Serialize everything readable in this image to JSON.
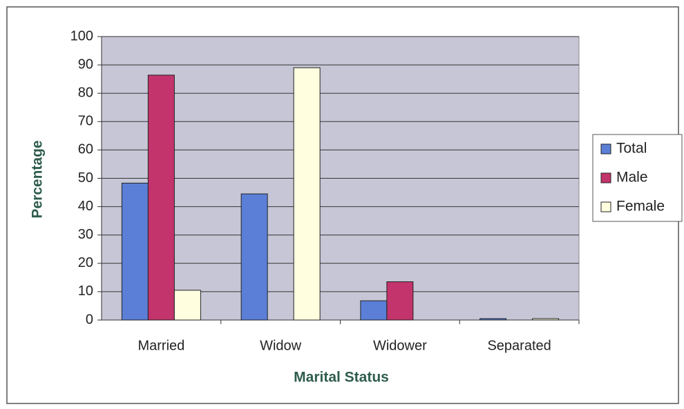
{
  "chart_data": {
    "type": "bar",
    "x_label": "Marital Status",
    "y_label": "Percentage",
    "categories": [
      "Married",
      "Widow",
      "Widower",
      "Separated"
    ],
    "series": [
      {
        "name": "Total",
        "color": "#5b7fd6",
        "values": [
          48.3,
          44.5,
          6.8,
          0.5
        ]
      },
      {
        "name": "Male",
        "color": "#c2346b",
        "values": [
          86.4,
          0,
          13.5,
          0
        ]
      },
      {
        "name": "Female",
        "color": "#ffffe0",
        "values": [
          10.5,
          89,
          0,
          0.5
        ]
      }
    ],
    "ylim": [
      0,
      100
    ],
    "yticks": [
      0,
      10,
      20,
      30,
      40,
      50,
      60,
      70,
      80,
      90,
      100
    ],
    "grid": true,
    "legend": "right"
  }
}
